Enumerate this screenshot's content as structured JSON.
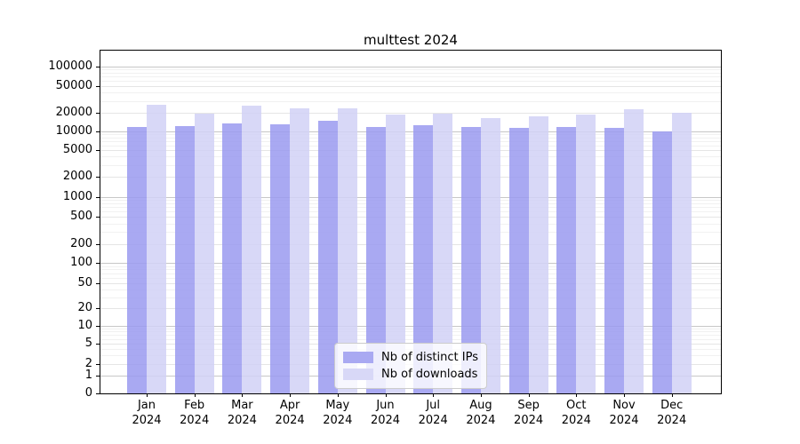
{
  "figure": {
    "background_color": "#ffffff"
  },
  "chart_data": {
    "type": "bar",
    "title": "multtest 2024",
    "xlabel": "",
    "ylabel": "",
    "yscale": "symlog",
    "grid": true,
    "categories": [
      "Jan",
      "Feb",
      "Mar",
      "Apr",
      "May",
      "Jun",
      "Jul",
      "Aug",
      "Sep",
      "Oct",
      "Nov",
      "Dec"
    ],
    "x_year_suffix": "2024",
    "series": [
      {
        "name": "Nb of distinct IPs",
        "color": "#a9a9f2",
        "values": [
          12000,
          12400,
          13700,
          13200,
          14800,
          11700,
          12500,
          11700,
          11300,
          11800,
          11600,
          9900
        ]
      },
      {
        "name": "Nb of downloads",
        "color": "#d8d8f7",
        "values": [
          26000,
          19500,
          25500,
          23000,
          23300,
          18800,
          19500,
          16500,
          17700,
          18900,
          22500,
          20300
        ]
      }
    ],
    "y_tick_values": [
      0,
      1,
      2,
      5,
      10,
      20,
      50,
      100,
      200,
      500,
      1000,
      2000,
      5000,
      10000,
      20000,
      50000,
      100000
    ],
    "ylim": [
      0,
      176000
    ],
    "legend": {
      "position": "lower center",
      "entries": [
        "Nb of distinct IPs",
        "Nb of downloads"
      ]
    }
  }
}
